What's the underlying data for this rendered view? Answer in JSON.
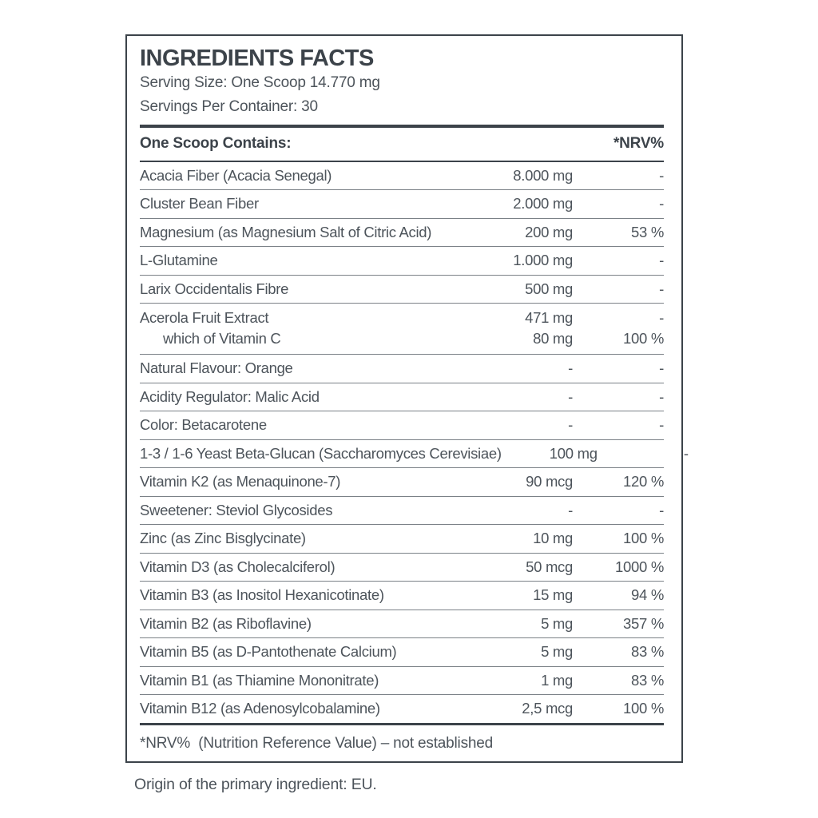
{
  "colors": {
    "dark": "#3c434a",
    "body_text": "#4d545b",
    "thin_rule": "#7b8187",
    "background": "#ffffff"
  },
  "panel": {
    "title": "INGREDIENTS FACTS",
    "serving_size": "Serving Size: One Scoop 14.770 mg",
    "servings_per_container": "Servings Per Container: 30",
    "table": {
      "header_left": "One Scoop Contains:",
      "header_right": "*NRV%",
      "rows": [
        {
          "name": "Acacia Fiber (Acacia Senegal)",
          "amount": "8.000 mg",
          "nrv": "-",
          "style": "normal"
        },
        {
          "name": "Cluster Bean Fiber",
          "amount": "2.000 mg",
          "nrv": "-",
          "style": "normal"
        },
        {
          "name": "Magnesium (as Magnesium Salt of Citric Acid)",
          "amount": "200 mg",
          "nrv": "53 %",
          "style": "normal"
        },
        {
          "name": "L-Glutamine",
          "amount": "1.000 mg",
          "nrv": "-",
          "style": "normal"
        },
        {
          "name": "Larix Occidentalis Fibre",
          "amount": "500 mg",
          "nrv": "-",
          "style": "normal"
        },
        {
          "name": "Acerola Fruit Extract",
          "amount": "471 mg",
          "nrv": "-",
          "style": "half-top"
        },
        {
          "name": "which of Vitamin C",
          "amount": "80 mg",
          "nrv": "100 %",
          "style": "half-bottom indent"
        },
        {
          "name": "Natural Flavour: Orange",
          "amount": "-",
          "nrv": "-",
          "style": "normal"
        },
        {
          "name": "Acidity Regulator: Malic Acid",
          "amount": "-",
          "nrv": "-",
          "style": "normal"
        },
        {
          "name": "Color: Betacarotene",
          "amount": "-",
          "nrv": "-",
          "style": "normal"
        },
        {
          "name": "1-3 / 1-6 Yeast Beta-Glucan (Saccharomyces Cerevisiae)",
          "amount": "100 mg",
          "nrv": "-",
          "style": "normal"
        },
        {
          "name": "Vitamin K2 (as Menaquinone-7)",
          "amount": "90 mcg",
          "nrv": "120 %",
          "style": "normal"
        },
        {
          "name": "Sweetener: Steviol Glycosides",
          "amount": "-",
          "nrv": "-",
          "style": "normal"
        },
        {
          "name": "Zinc (as Zinc Bisglycinate)",
          "amount": "10 mg",
          "nrv": "100 %",
          "style": "normal"
        },
        {
          "name": "Vitamin D3 (as Cholecalciferol)",
          "amount": "50 mcg",
          "nrv": "1000 %",
          "style": "normal"
        },
        {
          "name": "Vitamin B3 (as Inositol Hexanicotinate)",
          "amount": "15 mg",
          "nrv": "94 %",
          "style": "normal"
        },
        {
          "name": "Vitamin B2 (as Riboflavine)",
          "amount": "5 mg",
          "nrv": "357 %",
          "style": "normal"
        },
        {
          "name": "Vitamin B5 (as D-Pantothenate Calcium)",
          "amount": "5 mg",
          "nrv": "83 %",
          "style": "normal"
        },
        {
          "name": "Vitamin B1 (as Thiamine Mononitrate)",
          "amount": "1 mg",
          "nrv": "83 %",
          "style": "normal"
        },
        {
          "name": "Vitamin B12 (as Adenosylcobalamine)",
          "amount": "2,5 mcg",
          "nrv": "100 %",
          "style": "no-divider"
        }
      ]
    },
    "footnote": "*NRV%  (Nutrition Reference Value) – not established"
  },
  "origin_note": "Origin of the primary ingredient: EU."
}
